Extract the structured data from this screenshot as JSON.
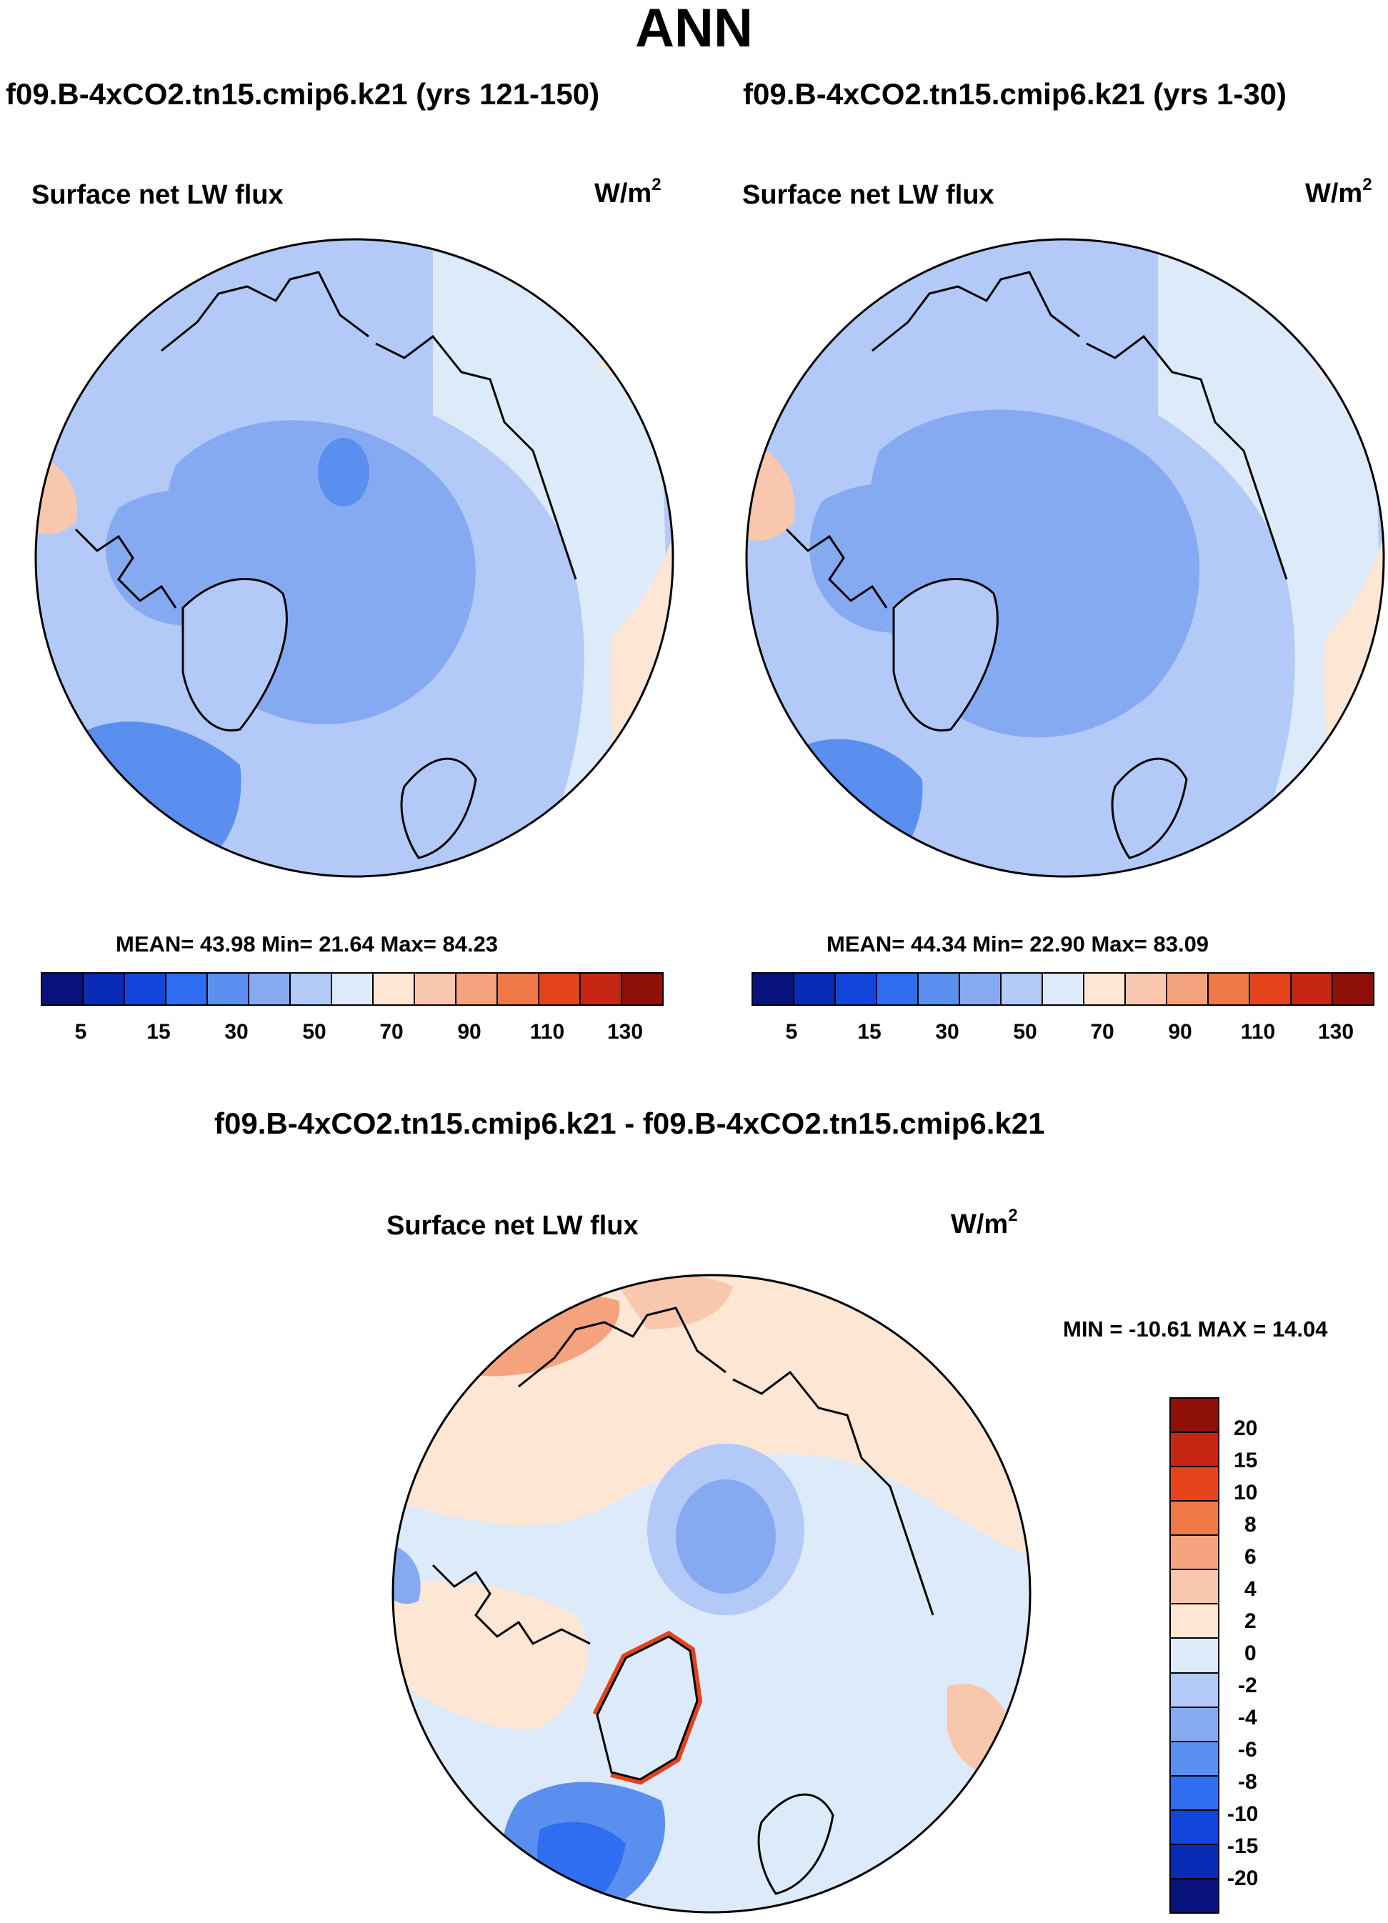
{
  "main_title": "ANN",
  "panels": [
    {
      "case_title": "f09.B-4xCO2.tn15.cmip6.k21 (yrs 121-150)",
      "variable": "Surface net LW flux",
      "units": "W/m",
      "units_sup": "2",
      "stats": "MEAN=  43.98  Min=  21.64  Max=  84.23"
    },
    {
      "case_title": "f09.B-4xCO2.tn15.cmip6.k21 (yrs 1-30)",
      "variable": "Surface net LW flux",
      "units": "W/m",
      "units_sup": "2",
      "stats": "MEAN=  44.34  Min=  22.90  Max=  83.09"
    }
  ],
  "diff_panel": {
    "case_title": "f09.B-4xCO2.tn15.cmip6.k21 - f09.B-4xCO2.tn15.cmip6.k21",
    "variable": "Surface net LW flux",
    "units": "W/m",
    "units_sup": "2",
    "stats": "MIN = -10.61 MAX =  14.04"
  },
  "colors": {
    "field_colorbar": [
      "#08127d",
      "#0a2bb5",
      "#1245dc",
      "#2f6ef0",
      "#5a8fef",
      "#86aaf2",
      "#b3c9f7",
      "#dceaf9",
      "#fde6d3",
      "#f8c7ad",
      "#f5a27f",
      "#f07746",
      "#e4431b",
      "#c52512",
      "#8e1008"
    ],
    "diff_colorbar_top_to_bottom": [
      "#8e1008",
      "#c52512",
      "#e4431b",
      "#f07746",
      "#f5a27f",
      "#f8c7ad",
      "#fde6d3",
      "#dceaf9",
      "#b3c9f7",
      "#86aaf2",
      "#5a8fef",
      "#2f6ef0",
      "#1245dc",
      "#0a2bb5",
      "#08127d"
    ]
  },
  "chart_data": [
    {
      "type": "heatmap",
      "projection": "north-polar-stereographic",
      "title": "f09.B-4xCO2.tn15.cmip6.k21 (yrs 121-150)",
      "variable": "Surface net LW flux",
      "units": "W/m2",
      "mean": 43.98,
      "min": 21.64,
      "max": 84.23,
      "colorbar_levels": [
        "5",
        "10",
        "15",
        "20",
        "30",
        "40",
        "50",
        "60",
        "70",
        "80",
        "90",
        "100",
        "110",
        "120",
        "130"
      ],
      "colorbar_labels": [
        "5",
        "15",
        "30",
        "50",
        "70",
        "90",
        "110",
        "130"
      ]
    },
    {
      "type": "heatmap",
      "projection": "north-polar-stereographic",
      "title": "f09.B-4xCO2.tn15.cmip6.k21 (yrs 1-30)",
      "variable": "Surface net LW flux",
      "units": "W/m2",
      "mean": 44.34,
      "min": 22.9,
      "max": 83.09,
      "colorbar_levels": [
        "5",
        "10",
        "15",
        "20",
        "30",
        "40",
        "50",
        "60",
        "70",
        "80",
        "90",
        "100",
        "110",
        "120",
        "130"
      ],
      "colorbar_labels": [
        "5",
        "15",
        "30",
        "50",
        "70",
        "90",
        "110",
        "130"
      ]
    },
    {
      "type": "heatmap",
      "projection": "north-polar-stereographic",
      "title": "f09.B-4xCO2.tn15.cmip6.k21 - f09.B-4xCO2.tn15.cmip6.k21",
      "variable": "Surface net LW flux",
      "units": "W/m2",
      "min": -10.61,
      "max": 14.04,
      "colorbar_labels": [
        "20",
        "15",
        "10",
        "8",
        "6",
        "4",
        "2",
        "0",
        "-2",
        "-4",
        "-6",
        "-8",
        "-10",
        "-15",
        "-20"
      ]
    }
  ]
}
